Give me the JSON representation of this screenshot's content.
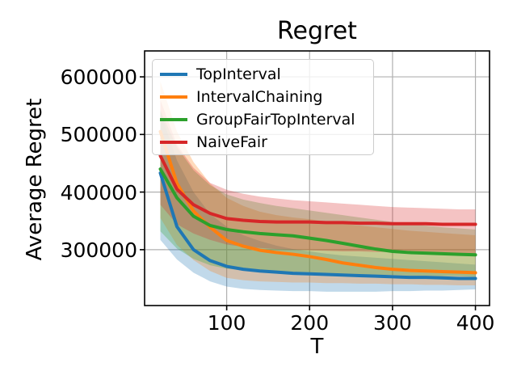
{
  "figure": {
    "title": "Regret",
    "xlabel": "T",
    "ylabel": "Average Regret"
  },
  "chart_data": {
    "type": "line",
    "title": "Regret",
    "xlabel": "T",
    "ylabel": "Average Regret",
    "xlim": [
      1,
      417
    ],
    "ylim": [
      203000,
      645000
    ],
    "xticks": [
      100,
      200,
      300,
      400
    ],
    "yticks": [
      300000,
      400000,
      500000,
      600000
    ],
    "grid": true,
    "legend_position": "upper left",
    "x": [
      20,
      40,
      60,
      80,
      100,
      120,
      140,
      160,
      180,
      200,
      220,
      240,
      260,
      280,
      300,
      320,
      340,
      360,
      380,
      400
    ],
    "series": [
      {
        "name": "TopInterval",
        "color": "#1f77b4",
        "values": [
          433000,
          340000,
          300000,
          281000,
          271000,
          266000,
          263000,
          261000,
          259000,
          258000,
          257000,
          256000,
          255000,
          254000,
          253000,
          252000,
          252000,
          251000,
          250000,
          250000
        ],
        "band_low": [
          317000,
          283000,
          260000,
          245000,
          236000,
          232000,
          230000,
          229000,
          228000,
          228000,
          227000,
          227000,
          227000,
          227000,
          228000,
          228000,
          229000,
          229000,
          230000,
          231000
        ],
        "band_high": [
          540000,
          455000,
          400000,
          362000,
          340000,
          325000,
          315000,
          307000,
          301000,
          297000,
          293000,
          290000,
          288000,
          286000,
          284000,
          282000,
          280000,
          278000,
          276000,
          274000
        ]
      },
      {
        "name": "IntervalChaining",
        "color": "#ff7f0e",
        "values": [
          505000,
          415000,
          367000,
          339000,
          316000,
          306000,
          299000,
          295000,
          292000,
          288000,
          283000,
          277000,
          273000,
          269000,
          266000,
          264000,
          263000,
          262000,
          261000,
          260000
        ],
        "band_low": [
          355000,
          308000,
          282000,
          263000,
          251000,
          247000,
          245000,
          244000,
          243000,
          243000,
          242000,
          242000,
          241000,
          241000,
          240000,
          240000,
          239000,
          239000,
          238000,
          238000
        ],
        "band_high": [
          592000,
          505000,
          452000,
          415000,
          390000,
          376000,
          366000,
          360000,
          356000,
          353000,
          349000,
          345000,
          342000,
          339000,
          336000,
          333000,
          331000,
          329000,
          327000,
          325000
        ]
      },
      {
        "name": "GroupFairTopInterval",
        "color": "#2ca02c",
        "values": [
          440000,
          390000,
          358000,
          342000,
          335000,
          331000,
          328000,
          326000,
          324000,
          320000,
          316000,
          311000,
          306000,
          301000,
          297000,
          295000,
          294000,
          293000,
          292000,
          291000
        ],
        "band_low": [
          332000,
          302000,
          284000,
          273000,
          267000,
          264000,
          262000,
          261000,
          260000,
          259000,
          258000,
          257000,
          257000,
          256000,
          256000,
          255000,
          255000,
          254000,
          254000,
          253000
        ],
        "band_high": [
          542000,
          478000,
          438000,
          412000,
          396000,
          387000,
          381000,
          376000,
          372000,
          368000,
          364000,
          360000,
          356000,
          352000,
          348000,
          345000,
          342000,
          339000,
          337000,
          335000
        ]
      },
      {
        "name": "NaiveFair",
        "color": "#d62728",
        "values": [
          463000,
          405000,
          378000,
          363000,
          354000,
          351000,
          349000,
          348000,
          348000,
          348000,
          347000,
          347000,
          346000,
          346000,
          345000,
          345000,
          345000,
          344000,
          344000,
          344000
        ],
        "band_low": [
          378000,
          344000,
          328000,
          317000,
          309000,
          305000,
          303000,
          301000,
          300000,
          299000,
          298000,
          297000,
          297000,
          296000,
          296000,
          295000,
          295000,
          294000,
          294000,
          293000
        ],
        "band_high": [
          560000,
          482000,
          442000,
          416000,
          404000,
          397000,
          392000,
          389000,
          386000,
          384000,
          382000,
          380000,
          378000,
          376000,
          374000,
          373000,
          372000,
          371000,
          370000,
          370000
        ]
      }
    ]
  },
  "style": {
    "grid_color": "#b0b0b0",
    "spine_color": "#000000",
    "band_opacity": 0.28
  }
}
